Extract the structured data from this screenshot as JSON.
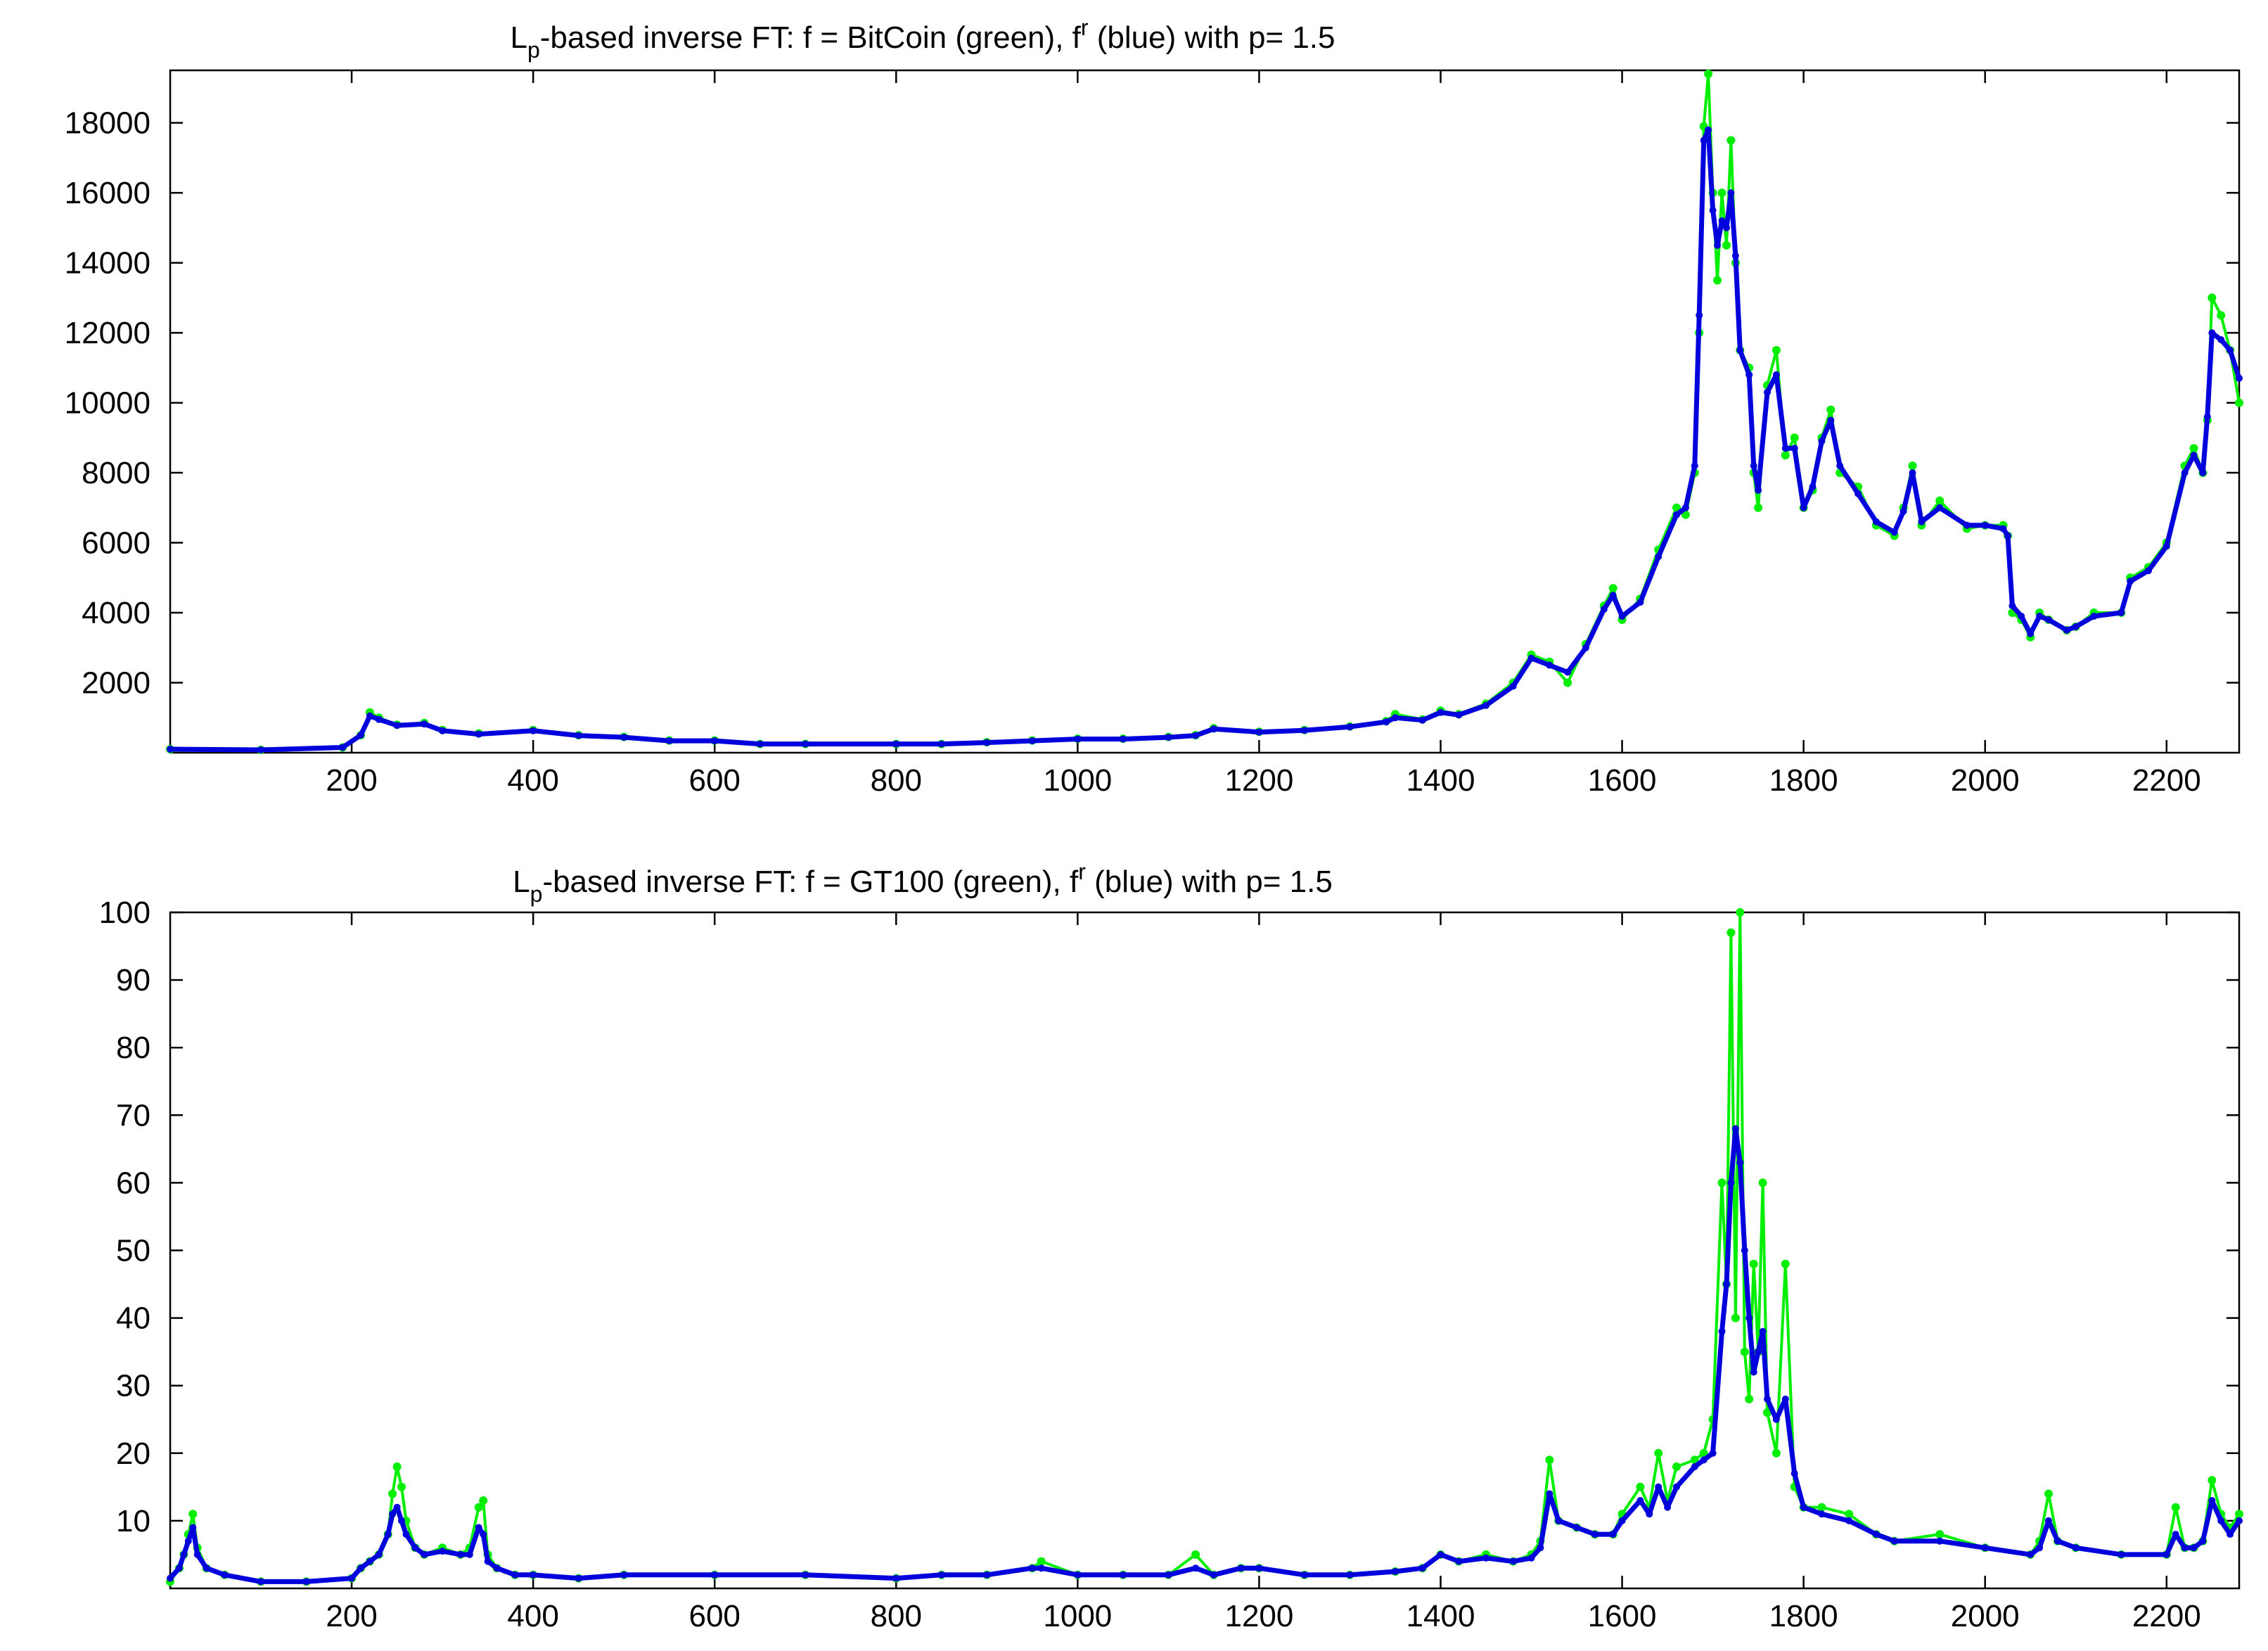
{
  "chart_data": [
    {
      "type": "line",
      "title": {
        "prefix": "L",
        "sub": "p",
        "middle": "-based inverse FT: f = BitCoin (green), f",
        "sup": "r",
        "suffix": " (blue) with p= 1.5"
      },
      "xlabel": "",
      "ylabel": "",
      "xlim": [
        0,
        2280
      ],
      "ylim": [
        0,
        19500
      ],
      "xticks": [
        200,
        400,
        600,
        800,
        1000,
        1200,
        1400,
        1600,
        1800,
        2000,
        2200
      ],
      "yticks": [
        2000,
        4000,
        6000,
        8000,
        10000,
        12000,
        14000,
        16000,
        18000
      ],
      "grid": false,
      "colors": {
        "green": "#00ee00",
        "blue": "#0000dd"
      },
      "series": [
        {
          "style": "green",
          "x": [
            0,
            100,
            190,
            210,
            220,
            230,
            250,
            280,
            300,
            340,
            400,
            450,
            500,
            550,
            600,
            650,
            700,
            800,
            850,
            900,
            950,
            1000,
            1050,
            1100,
            1130,
            1150,
            1200,
            1250,
            1300,
            1340,
            1350,
            1380,
            1400,
            1420,
            1450,
            1480,
            1500,
            1520,
            1540,
            1560,
            1580,
            1590,
            1600,
            1620,
            1640,
            1660,
            1670,
            1680,
            1685,
            1690,
            1695,
            1700,
            1705,
            1710,
            1715,
            1720,
            1725,
            1730,
            1740,
            1745,
            1750,
            1760,
            1770,
            1780,
            1790,
            1800,
            1810,
            1820,
            1830,
            1840,
            1860,
            1880,
            1900,
            1910,
            1920,
            1930,
            1950,
            1980,
            2000,
            2020,
            2025,
            2030,
            2040,
            2050,
            2060,
            2070,
            2090,
            2100,
            2120,
            2150,
            2160,
            2180,
            2200,
            2220,
            2230,
            2240,
            2245,
            2250,
            2260,
            2270,
            2280
          ],
          "y": [
            100,
            80,
            150,
            500,
            1150,
            1000,
            800,
            850,
            650,
            550,
            650,
            500,
            450,
            350,
            350,
            250,
            250,
            250,
            250,
            300,
            350,
            400,
            400,
            450,
            500,
            700,
            600,
            650,
            750,
            900,
            1100,
            950,
            1200,
            1100,
            1400,
            2000,
            2800,
            2600,
            2000,
            3100,
            4200,
            4700,
            3800,
            4400,
            5800,
            7000,
            6800,
            8000,
            12000,
            17900,
            19400,
            16000,
            13500,
            16000,
            14500,
            17500,
            14000,
            11500,
            11000,
            8000,
            7000,
            10500,
            11500,
            8500,
            9000,
            7000,
            7500,
            9000,
            9800,
            8000,
            7600,
            6500,
            6200,
            7000,
            8200,
            6500,
            7200,
            6400,
            6500,
            6500,
            6200,
            4000,
            3800,
            3300,
            4000,
            3800,
            3500,
            3600,
            4000,
            4000,
            5000,
            5300,
            6000,
            8200,
            8700,
            8000,
            9500,
            13000,
            12500,
            11500,
            10000
          ]
        },
        {
          "style": "blue",
          "x": [
            0,
            100,
            190,
            210,
            220,
            230,
            250,
            280,
            300,
            340,
            400,
            450,
            500,
            550,
            600,
            650,
            700,
            800,
            850,
            900,
            950,
            1000,
            1050,
            1100,
            1130,
            1150,
            1200,
            1250,
            1300,
            1340,
            1350,
            1380,
            1400,
            1420,
            1450,
            1480,
            1500,
            1520,
            1540,
            1560,
            1580,
            1590,
            1600,
            1620,
            1640,
            1660,
            1670,
            1680,
            1685,
            1690,
            1695,
            1700,
            1705,
            1710,
            1715,
            1720,
            1725,
            1730,
            1740,
            1745,
            1750,
            1760,
            1770,
            1780,
            1790,
            1800,
            1810,
            1820,
            1830,
            1840,
            1860,
            1880,
            1900,
            1910,
            1920,
            1930,
            1950,
            1980,
            2000,
            2020,
            2025,
            2030,
            2040,
            2050,
            2060,
            2070,
            2090,
            2100,
            2120,
            2150,
            2160,
            2180,
            2200,
            2220,
            2230,
            2240,
            2245,
            2250,
            2260,
            2270,
            2280
          ],
          "y": [
            100,
            80,
            150,
            500,
            1050,
            950,
            780,
            820,
            630,
            530,
            630,
            490,
            440,
            340,
            340,
            250,
            250,
            250,
            250,
            290,
            340,
            390,
            390,
            440,
            490,
            680,
            590,
            640,
            740,
            880,
            1000,
            930,
            1150,
            1080,
            1350,
            1900,
            2700,
            2500,
            2300,
            3000,
            4100,
            4500,
            3900,
            4300,
            5600,
            6800,
            7000,
            8200,
            12500,
            17500,
            17800,
            15500,
            14500,
            15200,
            15000,
            16000,
            14200,
            11500,
            10800,
            8200,
            7500,
            10300,
            10800,
            8700,
            8700,
            7000,
            7600,
            8900,
            9500,
            8200,
            7400,
            6600,
            6300,
            6900,
            8000,
            6600,
            7000,
            6500,
            6500,
            6400,
            6200,
            4200,
            3900,
            3400,
            3900,
            3800,
            3500,
            3600,
            3900,
            4000,
            4900,
            5200,
            5900,
            8000,
            8500,
            8000,
            9600,
            12000,
            11800,
            11500,
            10700
          ]
        }
      ]
    },
    {
      "type": "line",
      "title": {
        "prefix": "L",
        "sub": "p",
        "middle": "-based inverse FT: f = GT100 (green), f",
        "sup": "r",
        "suffix": " (blue) with p= 1.5"
      },
      "xlabel": "",
      "ylabel": "",
      "xlim": [
        0,
        2280
      ],
      "ylim": [
        0,
        100
      ],
      "xticks": [
        200,
        400,
        600,
        800,
        1000,
        1200,
        1400,
        1600,
        1800,
        2000,
        2200
      ],
      "yticks": [
        10,
        20,
        30,
        40,
        50,
        60,
        70,
        80,
        90,
        100
      ],
      "grid": false,
      "colors": {
        "green": "#00ee00",
        "blue": "#0000dd"
      },
      "series": [
        {
          "style": "green",
          "x": [
            0,
            10,
            15,
            20,
            25,
            30,
            40,
            60,
            100,
            150,
            200,
            210,
            220,
            230,
            240,
            245,
            250,
            255,
            260,
            270,
            280,
            300,
            320,
            330,
            340,
            345,
            350,
            360,
            380,
            400,
            450,
            500,
            600,
            700,
            800,
            850,
            900,
            950,
            960,
            1000,
            1050,
            1100,
            1130,
            1150,
            1180,
            1200,
            1250,
            1300,
            1350,
            1380,
            1400,
            1420,
            1450,
            1480,
            1500,
            1510,
            1520,
            1530,
            1550,
            1570,
            1590,
            1600,
            1620,
            1630,
            1640,
            1650,
            1660,
            1680,
            1690,
            1700,
            1710,
            1715,
            1720,
            1725,
            1730,
            1735,
            1740,
            1745,
            1750,
            1755,
            1760,
            1770,
            1780,
            1790,
            1800,
            1820,
            1850,
            1880,
            1900,
            1950,
            2000,
            2050,
            2060,
            2070,
            2080,
            2100,
            2150,
            2200,
            2210,
            2220,
            2230,
            2240,
            2250,
            2260,
            2270,
            2280
          ],
          "y": [
            1,
            3,
            5,
            8,
            11,
            6,
            3,
            2,
            1,
            1,
            1.5,
            3,
            4,
            5,
            8,
            14,
            18,
            15,
            10,
            6,
            5,
            6,
            5,
            6,
            12,
            13,
            5,
            3,
            2,
            2,
            1.5,
            2,
            2,
            2,
            1.5,
            2,
            2,
            3,
            4,
            2,
            2,
            2,
            5,
            2,
            3,
            3,
            2,
            2,
            2.5,
            3,
            5,
            4,
            5,
            4,
            5,
            7,
            19,
            10,
            9,
            8,
            8,
            11,
            15,
            12,
            20,
            13,
            18,
            19,
            20,
            25,
            60,
            45,
            97,
            40,
            100,
            35,
            28,
            48,
            35,
            60,
            26,
            20,
            48,
            15,
            12,
            12,
            11,
            8,
            7,
            8,
            6,
            5,
            7,
            14,
            7,
            6,
            5,
            5,
            12,
            6,
            6,
            7,
            16,
            11,
            9,
            11
          ]
        },
        {
          "style": "blue",
          "x": [
            0,
            10,
            15,
            20,
            25,
            30,
            40,
            60,
            100,
            150,
            200,
            210,
            220,
            230,
            240,
            245,
            250,
            255,
            260,
            270,
            280,
            300,
            320,
            330,
            340,
            345,
            350,
            360,
            380,
            400,
            450,
            500,
            600,
            700,
            800,
            850,
            900,
            950,
            960,
            1000,
            1050,
            1100,
            1130,
            1150,
            1180,
            1200,
            1250,
            1300,
            1350,
            1380,
            1400,
            1420,
            1450,
            1480,
            1500,
            1510,
            1520,
            1530,
            1550,
            1570,
            1590,
            1600,
            1620,
            1630,
            1640,
            1650,
            1660,
            1680,
            1690,
            1700,
            1710,
            1715,
            1720,
            1725,
            1730,
            1735,
            1740,
            1745,
            1750,
            1755,
            1760,
            1770,
            1780,
            1790,
            1800,
            1820,
            1850,
            1880,
            1900,
            1950,
            2000,
            2050,
            2060,
            2070,
            2080,
            2100,
            2150,
            2200,
            2210,
            2220,
            2230,
            2240,
            2250,
            2260,
            2270,
            2280
          ],
          "y": [
            1.5,
            3,
            5,
            7,
            9,
            5,
            3,
            2,
            1,
            1,
            1.5,
            3,
            4,
            5,
            8,
            11,
            12,
            10,
            8,
            6,
            5,
            5.5,
            5,
            5,
            9,
            8,
            4,
            3,
            2,
            2,
            1.5,
            2,
            2,
            2,
            1.5,
            2,
            2,
            3,
            3,
            2,
            2,
            2,
            3,
            2,
            3,
            3,
            2,
            2,
            2.5,
            3,
            5,
            4,
            4.5,
            4,
            4.5,
            6,
            14,
            10,
            9,
            8,
            8,
            10,
            13,
            11,
            15,
            12,
            15,
            18,
            19,
            20,
            38,
            45,
            60,
            68,
            63,
            50,
            40,
            32,
            35,
            38,
            28,
            25,
            28,
            17,
            12,
            11,
            10,
            8,
            7,
            7,
            6,
            5,
            6,
            10,
            7,
            6,
            5,
            5,
            8,
            6,
            6,
            7,
            13,
            10,
            8,
            10
          ]
        }
      ]
    }
  ]
}
